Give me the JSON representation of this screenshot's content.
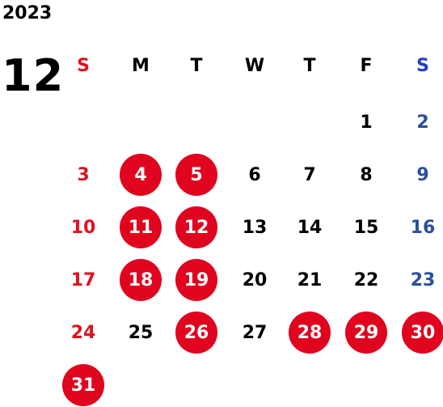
{
  "header": {
    "year": "2023",
    "month": "12"
  },
  "colors": {
    "sunday": "#e0121f",
    "saturday": "#1f3fbf",
    "saturday_date": "#2a4f9a",
    "weekday": "#000000",
    "highlight_circle": "#e0041f",
    "highlight_text": "#ffffff"
  },
  "weekdays": [
    "S",
    "M",
    "T",
    "W",
    "T",
    "F",
    "S"
  ],
  "first_weekday_index": 5,
  "days_in_month": 31,
  "highlighted_days": [
    4,
    5,
    11,
    12,
    18,
    19,
    26,
    28,
    29,
    30,
    31
  ]
}
